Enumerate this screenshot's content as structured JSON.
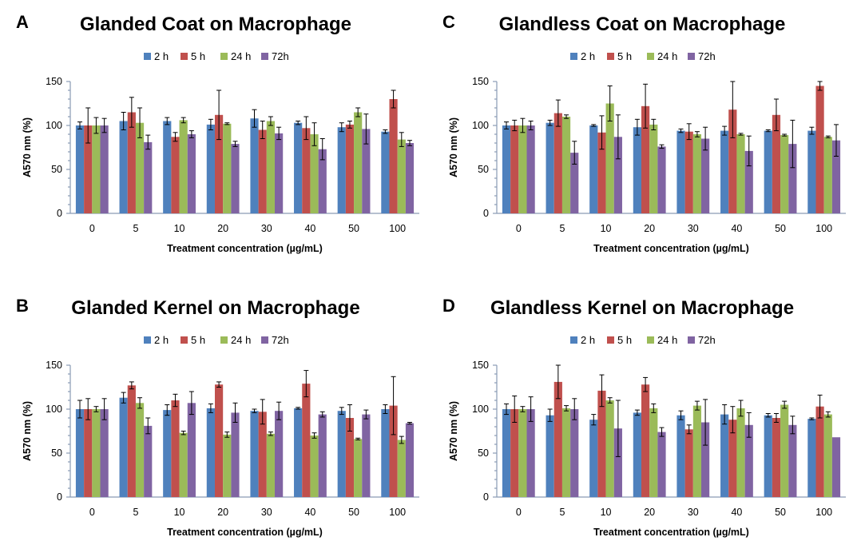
{
  "colors": {
    "2h": "#4f81bd",
    "5h": "#c0504d",
    "24h": "#9bbb59",
    "72h": "#8064a2"
  },
  "chart_data": [
    {
      "type": "bar",
      "letter": "A",
      "title": "Glanded Coat on Macrophage",
      "xlabel": "Treatment concentration (µg/mL)",
      "ylabel": "A570 nm (%)",
      "ylim": [
        0,
        150
      ],
      "yticks": [
        "0",
        "50",
        "100",
        "150"
      ],
      "categories": [
        "0",
        "5",
        "10",
        "20",
        "30",
        "40",
        "50",
        "100"
      ],
      "legend": [
        "2 h",
        "5 h",
        "24 h",
        "72h"
      ],
      "legend_position": "top",
      "series": [
        {
          "name": "2 h",
          "values": [
            100,
            105,
            105,
            101,
            108,
            103,
            98,
            93
          ],
          "errors": [
            4,
            10,
            4,
            6,
            10,
            2,
            5,
            2
          ]
        },
        {
          "name": "5 h",
          "values": [
            100,
            115,
            87,
            112,
            95,
            97,
            101,
            130
          ],
          "errors": [
            20,
            17,
            5,
            28,
            10,
            13,
            4,
            10
          ]
        },
        {
          "name": "24 h",
          "values": [
            100,
            103,
            106,
            102,
            105,
            90,
            115,
            84
          ],
          "errors": [
            9,
            17,
            3,
            1,
            5,
            13,
            5,
            8
          ]
        },
        {
          "name": "72h",
          "values": [
            100,
            81,
            90,
            79,
            91,
            73,
            96,
            80
          ],
          "errors": [
            8,
            8,
            4,
            3,
            7,
            12,
            17,
            3
          ]
        }
      ]
    },
    {
      "type": "bar",
      "letter": "C",
      "title": "Glandless Coat on Macrophage",
      "xlabel": "Treatment concentration (µg/mL)",
      "ylabel": "A570 nm (%)",
      "ylim": [
        0,
        150
      ],
      "yticks": [
        "0",
        "50",
        "100",
        "150"
      ],
      "categories": [
        "0",
        "5",
        "10",
        "20",
        "30",
        "40",
        "50",
        "100"
      ],
      "legend": [
        "2 h",
        "5 h",
        "24 h",
        "72h"
      ],
      "legend_position": "top",
      "series": [
        {
          "name": "2 h",
          "values": [
            100,
            103,
            100,
            98,
            94,
            94,
            94,
            94
          ],
          "errors": [
            4,
            3,
            1,
            9,
            2,
            5,
            1,
            4
          ]
        },
        {
          "name": "5 h",
          "values": [
            100,
            114,
            92,
            122,
            93,
            118,
            112,
            145
          ],
          "errors": [
            6,
            15,
            19,
            25,
            9,
            32,
            18,
            5
          ]
        },
        {
          "name": "24 h",
          "values": [
            100,
            110,
            125,
            101,
            90,
            90,
            89,
            87
          ],
          "errors": [
            8,
            2,
            20,
            6,
            3,
            1,
            1,
            1
          ]
        },
        {
          "name": "72h",
          "values": [
            100,
            69,
            87,
            76,
            85,
            71,
            79,
            83
          ],
          "errors": [
            5,
            13,
            25,
            2,
            13,
            17,
            27,
            18
          ]
        }
      ]
    },
    {
      "type": "bar",
      "letter": "B",
      "title": "Glanded Kernel on Macrophage",
      "xlabel": "Treatment concentration (µg/mL)",
      "ylabel": "A570 nm (%)",
      "ylim": [
        0,
        150
      ],
      "yticks": [
        "0",
        "50",
        "100",
        "150"
      ],
      "categories": [
        "0",
        "5",
        "10",
        "20",
        "30",
        "40",
        "50",
        "100"
      ],
      "legend": [
        "2 h",
        "5 h",
        "24 h",
        "72h"
      ],
      "legend_position": "top",
      "series": [
        {
          "name": "2 h",
          "values": [
            100,
            113,
            99,
            101,
            98,
            101,
            98,
            100
          ],
          "errors": [
            10,
            6,
            6,
            5,
            2,
            1,
            4,
            5
          ]
        },
        {
          "name": "5 h",
          "values": [
            100,
            127,
            110,
            128,
            97,
            129,
            90,
            104
          ],
          "errors": [
            12,
            4,
            7,
            3,
            14,
            15,
            15,
            33
          ]
        },
        {
          "name": "24 h",
          "values": [
            100,
            107,
            73,
            71,
            72,
            70,
            66,
            65
          ],
          "errors": [
            3,
            6,
            2,
            3,
            2,
            3,
            1,
            4
          ]
        },
        {
          "name": "72h",
          "values": [
            100,
            81,
            107,
            96,
            98,
            94,
            94,
            84
          ],
          "errors": [
            12,
            9,
            13,
            11,
            10,
            3,
            5,
            1
          ]
        }
      ]
    },
    {
      "type": "bar",
      "letter": "D",
      "title": "Glandless Kernel on Macrophage",
      "xlabel": "Treatment concentration (µg/mL)",
      "ylabel": "A570 nm (%)",
      "ylim": [
        0,
        150
      ],
      "yticks": [
        "0",
        "50",
        "100",
        "150"
      ],
      "categories": [
        "0",
        "5",
        "10",
        "20",
        "30",
        "40",
        "50",
        "100"
      ],
      "legend": [
        "2 h",
        "5 h",
        "24 h",
        "72h"
      ],
      "legend_position": "top",
      "series": [
        {
          "name": "2 h",
          "values": [
            100,
            93,
            88,
            96,
            93,
            94,
            93,
            89
          ],
          "errors": [
            6,
            7,
            6,
            3,
            5,
            11,
            2,
            1
          ]
        },
        {
          "name": "5 h",
          "values": [
            100,
            131,
            121,
            128,
            77,
            88,
            90,
            103
          ],
          "errors": [
            15,
            19,
            18,
            8,
            5,
            15,
            5,
            13
          ]
        },
        {
          "name": "24 h",
          "values": [
            100,
            101,
            110,
            101,
            104,
            101,
            105,
            94
          ],
          "errors": [
            3,
            3,
            3,
            5,
            5,
            9,
            4,
            3
          ]
        },
        {
          "name": "72h",
          "values": [
            100,
            100,
            78,
            74,
            85,
            82,
            82,
            68
          ],
          "errors": [
            14,
            12,
            32,
            5,
            26,
            14,
            10,
            0
          ]
        }
      ]
    }
  ]
}
